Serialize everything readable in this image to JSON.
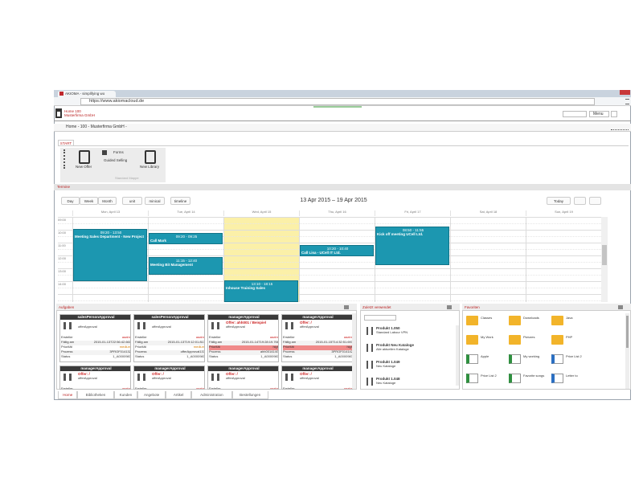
{
  "browser": {
    "tab_title": "AKIOMA - simplifying wo",
    "url": "https://www.akiomacloud.de"
  },
  "header": {
    "company_id": "Home 100",
    "company": "Musterfirma GmbH",
    "menu": "Menu"
  },
  "breadcrumb": "Home - 100 - Musterfirma GmbH -",
  "ribbon": {
    "tab": "START",
    "forms": "Forms",
    "guided_selling": "Guided Selling",
    "new_offer": "New Offer",
    "new_library": "New Library",
    "group": "Standard Mappe"
  },
  "calendar": {
    "title": "Termine",
    "views": [
      "Day",
      "Week",
      "Month"
    ],
    "extra_views": [
      "unit",
      "minical",
      "timeline"
    ],
    "range": "13 Apr 2015 – 19 Apr 2015",
    "today": "Today",
    "days": [
      "Mon, April 13",
      "Tue, April 14",
      "Wed, April 15",
      "Thu, April 16",
      "Fri, April 17",
      "Sat, April 18",
      "Sun, April 19"
    ],
    "times": [
      "09:00",
      "10:00",
      "11:00",
      "12:00",
      "13:00",
      "14:00"
    ],
    "events": [
      {
        "time": "09:20 - 13:50",
        "label": "Meeting Sales Department - New Project"
      },
      {
        "time": "09:20 - 09:25",
        "label": "Call Mark"
      },
      {
        "time": "11:15 - 12:40",
        "label": "Meeting Bit Management"
      },
      {
        "time": "13:10 - 18:15",
        "label": "Inhouse Training Sales"
      },
      {
        "time": "10:20 - 10:40",
        "label": "Call Lisa - UCell IT Ltd."
      },
      {
        "time": "08:50 - 11:55",
        "label": "Kick off meeting UCell Ltd."
      }
    ]
  },
  "tasks": {
    "title": "Aufgaben",
    "cards": [
      {
        "type": "salesPersonApproval",
        "offer": "",
        "process": "offerApproval",
        "fields": [
          [
            "Ersteller",
            "aaahn"
          ],
          [
            "Fällig am",
            "2015-01-13T22:56:42.661"
          ],
          [
            "Priorität",
            "medium"
          ],
          [
            "Prozess",
            "3PROF014132"
          ],
          [
            "Status",
            "1_A0000983"
          ]
        ]
      },
      {
        "type": "salesPersonApproval",
        "offer": "",
        "process": "offerApproval",
        "fields": [
          [
            "Ersteller",
            "aaahn"
          ],
          [
            "Fällig am",
            "2015-01-13T19:12:01.813"
          ],
          [
            "Priorität",
            "medium"
          ],
          [
            "Prozess",
            "offerApproval137"
          ],
          [
            "Status",
            "1_A0000983"
          ]
        ]
      },
      {
        "type": "managerApproval",
        "offer": "Offer: ahh001 / Beispiel",
        "process": "offerApproval",
        "fields": [
          [
            "Ersteller",
            "aaahn"
          ],
          [
            "Fällig am",
            "2015-01-14T19:28:19.766"
          ],
          [
            "Priorität",
            "high"
          ],
          [
            "Prozess",
            "ahh001414G"
          ],
          [
            "Status",
            "1_A0000983"
          ]
        ]
      },
      {
        "type": "managerApproval",
        "offer": "Offer: /",
        "process": "offerApproval",
        "fields": [
          [
            "Ersteller",
            "aaahn"
          ],
          [
            "Fällig am",
            "2015-01-15T14:32:51.693"
          ],
          [
            "Priorität",
            "high"
          ],
          [
            "Prozess",
            "3PROF014142"
          ],
          [
            "Status",
            "1_A0000983"
          ]
        ]
      },
      {
        "type": "managerApproval",
        "offer": "Offer: /",
        "process": "offerApproval",
        "fields": [
          [
            "Ersteller",
            "aaahn"
          ]
        ]
      },
      {
        "type": "managerApproval",
        "offer": "Offer: /",
        "process": "offerApproval",
        "fields": [
          [
            "Ersteller",
            "aaahn"
          ]
        ]
      },
      {
        "type": "managerApproval",
        "offer": "Offer: /",
        "process": "offerApproval",
        "fields": [
          [
            "Ersteller",
            "aaahn"
          ]
        ]
      },
      {
        "type": "managerApproval",
        "offer": "Offer: /",
        "process": "offerApproval",
        "fields": [
          [
            "Ersteller",
            "aaahn"
          ]
        ]
      }
    ]
  },
  "recent": {
    "title": "Zuletzt verwendet",
    "items": [
      {
        "name": "Produkt 1.050",
        "desc": "Standard Labour VPN"
      },
      {
        "name": "Produkt Neu Kataloge",
        "desc": "Alle aktuellen Kataloge"
      },
      {
        "name": "Produkt 1.049",
        "desc": "Neu Kataloge"
      },
      {
        "name": "Produkt 1.048",
        "desc": "Neu Kataloge"
      }
    ]
  },
  "favorites": {
    "title": "Favoriten",
    "items": [
      "Classes",
      "Downloads",
      "Java",
      "My Work",
      "Pictures",
      "PHP",
      "Apple",
      "My working",
      "Price List 2",
      "Price List 2",
      "Favorite songs",
      "Letter to"
    ]
  },
  "nav_tabs": [
    "Home",
    "Bibliotheken",
    "Kunden",
    "Angebote",
    "Artikel",
    "Administration",
    "Bestellungen"
  ]
}
